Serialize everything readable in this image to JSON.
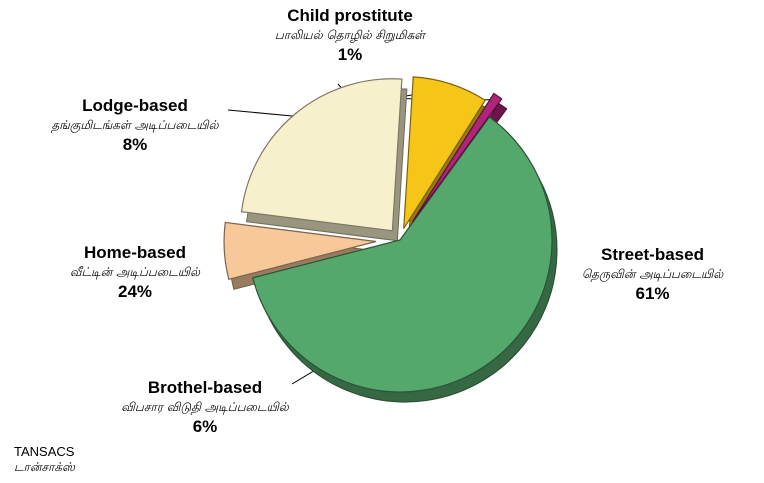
{
  "chart_data": {
    "type": "pie",
    "exploded": true,
    "style": "3d",
    "slices": [
      {
        "label": "Street-based",
        "label_ta": "தெருவின் அடிப்படையில்",
        "value": 61,
        "value_label": "61%",
        "color": "#55a86c"
      },
      {
        "label": "Brothel-based",
        "label_ta": "விபசார விடுதி அடிப்படையில்",
        "value": 6,
        "value_label": "6%",
        "color": "#f6c89a"
      },
      {
        "label": "Home-based",
        "label_ta": "வீட்டின் அடிப்படையில்",
        "value": 24,
        "value_label": "24%",
        "color": "#f7f0cc"
      },
      {
        "label": "Lodge-based",
        "label_ta": "தங்குமிடங்கள் அடிப்படையில்",
        "value": 8,
        "value_label": "8%",
        "color": "#f5c518"
      },
      {
        "label": "Child prostitute",
        "label_ta": "பாலியல் தொழில் சிறுமிகள்",
        "value": 1,
        "value_label": "1%",
        "color": "#b0247a"
      }
    ]
  },
  "source": {
    "name": "TANSACS",
    "name_ta": "டான்சாக்ஸ்"
  }
}
